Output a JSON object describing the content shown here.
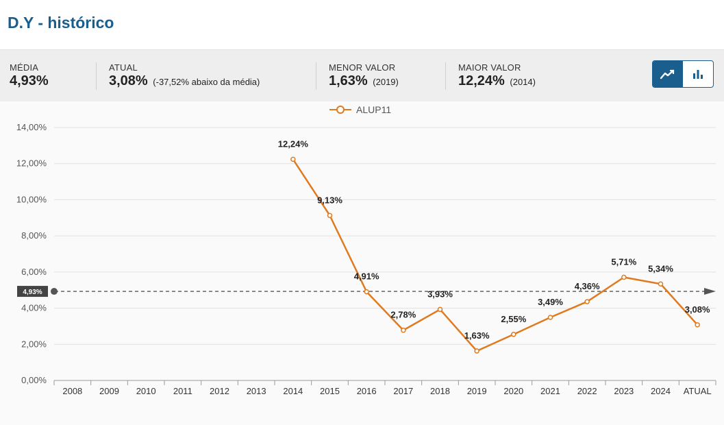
{
  "page": {
    "title": "D.Y - histórico"
  },
  "stats": {
    "media": {
      "label": "MÉDIA",
      "value": "4,93%"
    },
    "atual": {
      "label": "ATUAL",
      "value": "3,08%",
      "note": "(-37,52% abaixo da média)"
    },
    "menor": {
      "label": "MENOR VALOR",
      "value": "1,63%",
      "note": "(2019)"
    },
    "maior": {
      "label": "MAIOR VALOR",
      "value": "12,24%",
      "note": "(2014)"
    }
  },
  "toggle": {
    "line_icon": "line-chart-icon",
    "bar_icon": "bar-chart-icon"
  },
  "colors": {
    "brand": "#1a5e8e",
    "series": "#e07a1f",
    "avg_line": "#555555",
    "grid": "#e0e0e0"
  },
  "chart_data": {
    "type": "line",
    "title": "D.Y - histórico",
    "xlabel": "",
    "ylabel": "",
    "categories": [
      "2008",
      "2009",
      "2010",
      "2011",
      "2012",
      "2013",
      "2014",
      "2015",
      "2016",
      "2017",
      "2018",
      "2019",
      "2020",
      "2021",
      "2022",
      "2023",
      "2024",
      "ATUAL"
    ],
    "series": [
      {
        "name": "ALUP11",
        "values": [
          null,
          null,
          null,
          null,
          null,
          null,
          12.24,
          9.13,
          4.91,
          2.78,
          3.93,
          1.63,
          2.55,
          3.49,
          4.36,
          5.71,
          5.34,
          3.08
        ],
        "labels": [
          "",
          "",
          "",
          "",
          "",
          "",
          "12,24%",
          "9,13%",
          "4,91%",
          "2,78%",
          "3,93%",
          "1,63%",
          "2,55%",
          "3,49%",
          "4,36%",
          "5,71%",
          "5,34%",
          "3,08%"
        ]
      }
    ],
    "average": {
      "value": 4.93,
      "label": "4,93%"
    },
    "ylim": [
      0,
      14
    ],
    "yticks": [
      0,
      2,
      4,
      6,
      8,
      10,
      12,
      14
    ],
    "ytick_labels": [
      "0,00%",
      "2,00%",
      "4,00%",
      "6,00%",
      "8,00%",
      "10,00%",
      "12,00%",
      "14,00%"
    ],
    "legend": "top-center",
    "grid": true
  }
}
